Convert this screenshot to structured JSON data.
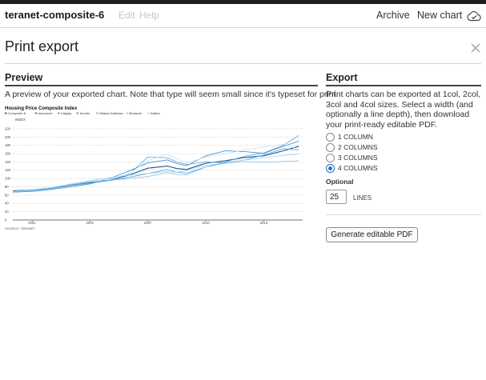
{
  "app": {
    "title": "teranet-composite-6",
    "menu_edit": "Edit",
    "menu_help": "Help",
    "nav_archive": "Archive",
    "nav_new_chart": "New chart",
    "cloud_icon": "cloud-check-icon"
  },
  "modal": {
    "title": "Print export",
    "close_icon": "close-icon"
  },
  "preview": {
    "heading": "Preview",
    "description": "A preview of your exported chart. Note that type will seem small since it's typeset for print."
  },
  "export": {
    "heading": "Export",
    "description": "Print charts can be exported at 1col, 2col, 3col and 4col sizes. Select a width (and optionally a line depth), then download your print-ready editable PDF.",
    "options": [
      {
        "label": "1 COLUMN",
        "checked": false
      },
      {
        "label": "2 COLUMNS",
        "checked": false
      },
      {
        "label": "3 COLUMNS",
        "checked": false
      },
      {
        "label": "4 COLUMNS",
        "checked": true
      }
    ],
    "optional_label": "Optional",
    "lines_value": "25",
    "lines_unit": "LINES",
    "generate_button": "Generate editable PDF"
  },
  "chart_data": {
    "type": "line",
    "title": "Housing Price Composite Index",
    "ylabel": "INDEX",
    "source": "SOURCE: TERANET",
    "x_ticks": [
      "2001",
      "2004",
      "2007",
      "2010",
      "2013"
    ],
    "y_ticks": [
      0,
      20,
      40,
      60,
      80,
      100,
      120,
      140,
      160,
      180,
      200,
      220
    ],
    "ylim": [
      0,
      220
    ],
    "xlim": [
      2000.0,
      2015.0
    ],
    "grid": "dashed-horizontal",
    "legend_position": "top",
    "series": [
      {
        "name": "Composite 6",
        "color": "#1f5a8c",
        "x": [
          2000.0,
          2001.0,
          2002.0,
          2003.0,
          2004.0,
          2005.0,
          2006.0,
          2007.0,
          2008.0,
          2008.5,
          2009.0,
          2010.0,
          2011.0,
          2012.0,
          2013.0,
          2014.0,
          2014.8
        ],
        "y": [
          70,
          73,
          78,
          85,
          90,
          96,
          108,
          125,
          130,
          124,
          122,
          137,
          143,
          151,
          155,
          167,
          178
        ]
      },
      {
        "name": "Vancouver",
        "color": "#2f83c9",
        "x": [
          2000.0,
          2001.0,
          2002.0,
          2003.0,
          2004.0,
          2005.0,
          2006.0,
          2007.0,
          2008.0,
          2008.5,
          2009.0,
          2010.0,
          2011.0,
          2012.0,
          2013.0,
          2014.0,
          2014.8
        ],
        "y": [
          67,
          69,
          74,
          80,
          87,
          100,
          118,
          138,
          145,
          136,
          131,
          155,
          167,
          165,
          161,
          178,
          190
        ]
      },
      {
        "name": "Calgary",
        "color": "#5aa3d9",
        "x": [
          2000.0,
          2001.0,
          2002.0,
          2003.0,
          2004.0,
          2005.0,
          2006.0,
          2007.0,
          2008.0,
          2008.5,
          2009.0,
          2010.0,
          2011.0,
          2012.0,
          2013.0,
          2014.0,
          2014.8
        ],
        "y": [
          68,
          72,
          77,
          84,
          91,
          96,
          110,
          152,
          150,
          140,
          134,
          140,
          138,
          145,
          157,
          172,
          169
        ]
      },
      {
        "name": "Toronto",
        "color": "#4a9fd8",
        "x": [
          2000.0,
          2001.0,
          2002.0,
          2003.0,
          2004.0,
          2005.0,
          2006.0,
          2007.0,
          2008.0,
          2008.5,
          2009.0,
          2010.0,
          2011.0,
          2012.0,
          2013.0,
          2014.0,
          2014.8
        ],
        "y": [
          67,
          70,
          76,
          83,
          89,
          95,
          103,
          112,
          122,
          115,
          113,
          128,
          140,
          154,
          162,
          180,
          204
        ]
      },
      {
        "name": "Ottawa-Gatineau",
        "color": "#7fbde6",
        "x": [
          2000.0,
          2001.0,
          2002.0,
          2003.0,
          2004.0,
          2005.0,
          2006.0,
          2007.0,
          2008.0,
          2008.5,
          2009.0,
          2010.0,
          2011.0,
          2012.0,
          2013.0,
          2014.0,
          2014.8
        ],
        "y": [
          69,
          73,
          79,
          86,
          92,
          96,
          100,
          105,
          114,
          110,
          109,
          128,
          137,
          141,
          139,
          141,
          143
        ]
      },
      {
        "name": "Montreal",
        "color": "#9fcdee",
        "x": [
          2000.0,
          2001.0,
          2002.0,
          2003.0,
          2004.0,
          2005.0,
          2006.0,
          2007.0,
          2008.0,
          2008.5,
          2009.0,
          2010.0,
          2011.0,
          2012.0,
          2013.0,
          2014.0,
          2014.8
        ],
        "y": [
          68,
          71,
          78,
          87,
          95,
          102,
          108,
          112,
          117,
          115,
          119,
          132,
          137,
          145,
          150,
          156,
          159
        ]
      },
      {
        "name": "Halifax",
        "color": "#c2e0f4",
        "x": [
          2000.0,
          2001.0,
          2002.0,
          2003.0,
          2004.0,
          2005.0,
          2006.0,
          2007.0,
          2008.0,
          2008.5,
          2009.0,
          2010.0,
          2011.0,
          2012.0,
          2013.0,
          2014.0,
          2014.8
        ],
        "y": [
          72,
          74,
          79,
          86,
          94,
          99,
          111,
          144,
          158,
          148,
          137,
          152,
          160,
          169,
          176,
          183,
          170
        ]
      }
    ]
  }
}
